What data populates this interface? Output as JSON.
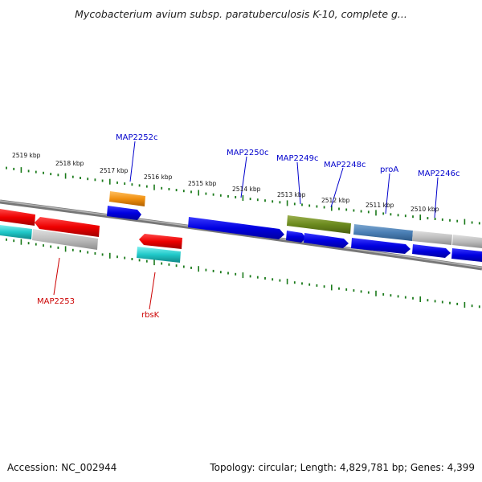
{
  "title": "Mycobacterium avium subsp. paratuberculosis K-10, complete g...",
  "footer": {
    "accession": "Accession: NC_002944",
    "summary": "Topology: circular; Length: 4,829,781 bp; Genes: 4,399"
  },
  "colors": {
    "forward_label": "#0000cc",
    "reverse_label": "#cc0000",
    "tick": "#1a7a1a",
    "backbone": "#888888"
  },
  "coordinate_labels": [
    "2519 kbp",
    "2518 kbp",
    "2517 kbp",
    "2516 kbp",
    "2515 kbp",
    "2514 kbp",
    "2513 kbp",
    "2512 kbp",
    "2511 kbp",
    "2510 kbp"
  ],
  "gene_labels": {
    "forward": [
      "MAP2252c",
      "MAP2250c",
      "MAP2249c",
      "MAP2248c",
      "proA",
      "MAP2246c"
    ],
    "reverse": [
      "MAP2253",
      "rbsK"
    ]
  }
}
